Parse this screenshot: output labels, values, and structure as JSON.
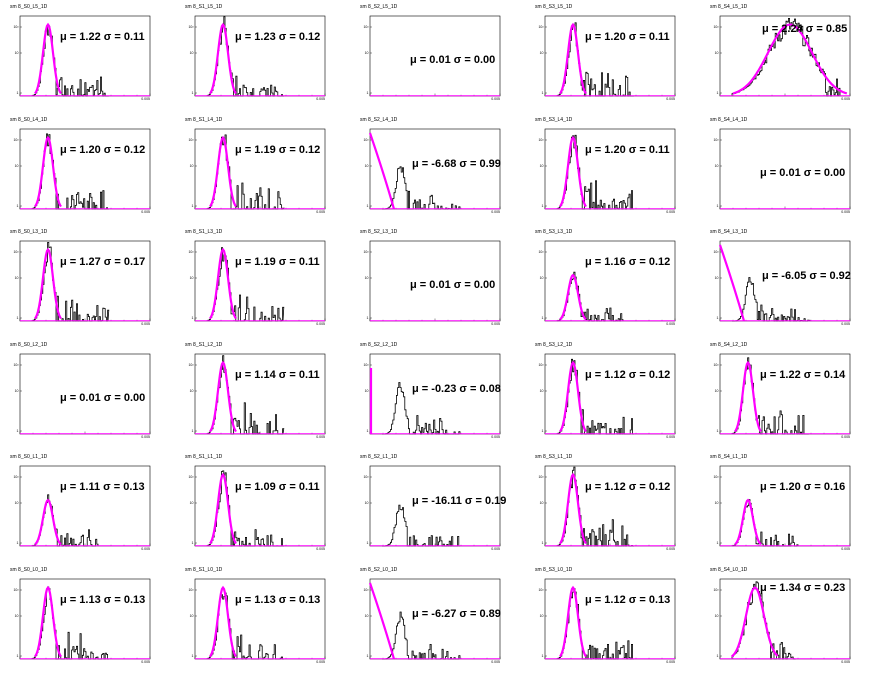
{
  "chart_data": {
    "type": "histogram-grid",
    "rows": 6,
    "cols": 5,
    "y_tick_labels": [
      "10²",
      "10",
      "1"
    ],
    "x_tick_label": "0.005",
    "colors": {
      "hist": "#000000",
      "fit": "#ff00ff",
      "frame": "#000000"
    },
    "panels": [
      {
        "title": "sm 8_S0_L5_1D",
        "mu": "1.22",
        "sigma": "0.11",
        "shape": "normal"
      },
      {
        "title": "sm 8_S1_L5_1D",
        "mu": "1.23",
        "sigma": "0.12",
        "shape": "normal"
      },
      {
        "title": "sm 8_S2_L5_1D",
        "mu": "0.01",
        "sigma": "0.00",
        "shape": "empty"
      },
      {
        "title": "sm 8_S3_L5_1D",
        "mu": "1.20",
        "sigma": "0.11",
        "shape": "normal"
      },
      {
        "title": "sm 8_S4_L5_1D",
        "mu": "2.24",
        "sigma": "0.85",
        "shape": "wide"
      },
      {
        "title": "sm 8_S0_L4_1D",
        "mu": "1.20",
        "sigma": "0.12",
        "shape": "normal"
      },
      {
        "title": "sm 8_S1_L4_1D",
        "mu": "1.19",
        "sigma": "0.12",
        "shape": "normal"
      },
      {
        "title": "sm 8_S2_L4_1D",
        "mu": "-6.68",
        "sigma": "0.99",
        "shape": "offfit"
      },
      {
        "title": "sm 8_S3_L4_1D",
        "mu": "1.20",
        "sigma": "0.11",
        "shape": "normal"
      },
      {
        "title": "sm 8_S4_L4_1D",
        "mu": "0.01",
        "sigma": "0.00",
        "shape": "empty"
      },
      {
        "title": "sm 8_S0_L3_1D",
        "mu": "1.27",
        "sigma": "0.17",
        "shape": "normal"
      },
      {
        "title": "sm 8_S1_L3_1D",
        "mu": "1.19",
        "sigma": "0.11",
        "shape": "normal"
      },
      {
        "title": "sm 8_S2_L3_1D",
        "mu": "0.01",
        "sigma": "0.00",
        "shape": "empty"
      },
      {
        "title": "sm 8_S3_L3_1D",
        "mu": "1.16",
        "sigma": "0.12",
        "shape": "normal-low"
      },
      {
        "title": "sm 8_S4_L3_1D",
        "mu": "-6.05",
        "sigma": "0.92",
        "shape": "offfit"
      },
      {
        "title": "sm 8_S0_L2_1D",
        "mu": "0.01",
        "sigma": "0.00",
        "shape": "empty"
      },
      {
        "title": "sm 8_S1_L2_1D",
        "mu": "1.14",
        "sigma": "0.11",
        "shape": "normal"
      },
      {
        "title": "sm 8_S2_L2_1D",
        "mu": "-0.23",
        "sigma": "0.08",
        "shape": "offfit-small"
      },
      {
        "title": "sm 8_S3_L2_1D",
        "mu": "1.12",
        "sigma": "0.12",
        "shape": "normal"
      },
      {
        "title": "sm 8_S4_L2_1D",
        "mu": "1.22",
        "sigma": "0.14",
        "shape": "normal"
      },
      {
        "title": "sm 8_S0_L1_1D",
        "mu": "1.11",
        "sigma": "0.13",
        "shape": "normal-low"
      },
      {
        "title": "sm 8_S1_L1_1D",
        "mu": "1.09",
        "sigma": "0.11",
        "shape": "normal"
      },
      {
        "title": "sm 8_S2_L1_1D",
        "mu": "-16.11",
        "sigma": "0.19",
        "shape": "nofit"
      },
      {
        "title": "sm 8_S3_L1_1D",
        "mu": "1.12",
        "sigma": "0.12",
        "shape": "normal"
      },
      {
        "title": "sm 8_S4_L1_1D",
        "mu": "1.20",
        "sigma": "0.16",
        "shape": "normal-low"
      },
      {
        "title": "sm 8_S0_L0_1D",
        "mu": "1.13",
        "sigma": "0.13",
        "shape": "normal"
      },
      {
        "title": "sm 8_S1_L0_1D",
        "mu": "1.13",
        "sigma": "0.13",
        "shape": "normal"
      },
      {
        "title": "sm 8_S2_L0_1D",
        "mu": "-6.27",
        "sigma": "0.89",
        "shape": "offfit"
      },
      {
        "title": "sm 8_S3_L0_1D",
        "mu": "1.12",
        "sigma": "0.13",
        "shape": "normal"
      },
      {
        "title": "sm 8_S4_L0_1D",
        "mu": "1.34",
        "sigma": "0.23",
        "shape": "semiwide"
      }
    ]
  }
}
